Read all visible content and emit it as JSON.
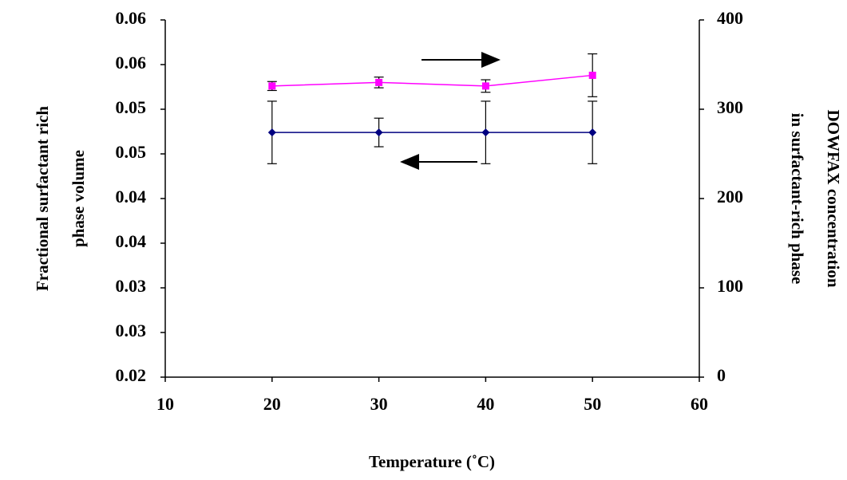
{
  "chart_data": {
    "type": "line",
    "xlabel": "Temperature (˚C)",
    "ylabel": [
      "Fractional surfactant rich",
      "phase volume"
    ],
    "y2label": [
      "DOWFAX concentration",
      "in surfactant-rich phase"
    ],
    "x": [
      20,
      30,
      40,
      50
    ],
    "xlim": [
      10,
      60
    ],
    "xticks": [
      10,
      20,
      30,
      40,
      50,
      60
    ],
    "ylim": [
      0.02,
      0.06
    ],
    "yticks": [
      0.02,
      {
        "value": 0.025,
        "label": "0.03"
      },
      0.03,
      {
        "value": 0.035,
        "label": "0.04"
      },
      0.04,
      {
        "value": 0.045,
        "label": "0.05"
      },
      0.05,
      {
        "value": 0.055,
        "label": "0.06"
      },
      0.06
    ],
    "y2lim": [
      0,
      400
    ],
    "y2ticks": [
      0,
      100,
      200,
      300,
      400
    ],
    "series": [
      {
        "color": "#000080",
        "marker": "diamond",
        "values": [
          0.0474,
          0.0474,
          0.0474,
          0.0474
        ],
        "errors": [
          0.0035,
          0.0016,
          0.0035,
          0.0035
        ]
      },
      {
        "color": "#ff00ff",
        "marker": "square",
        "axis": "y2",
        "values": [
          326,
          330,
          326,
          338
        ],
        "errors": [
          5,
          6,
          7,
          24
        ]
      }
    ]
  }
}
